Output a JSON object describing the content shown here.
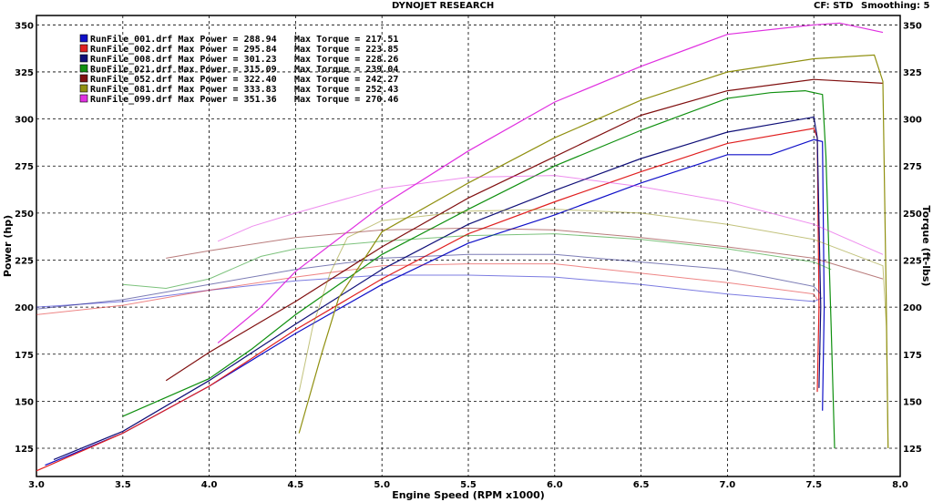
{
  "header": {
    "title": "DYNOJET RESEARCH",
    "cf_label": "CF: STD",
    "smoothing_label": "Smoothing: 5"
  },
  "chart_data": {
    "type": "line",
    "title": "DYNOJET RESEARCH",
    "xlabel": "Engine Speed (RPM x1000)",
    "ylabel_left": "Power (hp)",
    "ylabel_right": "Torque (ft-lbs)",
    "xlim": [
      3.0,
      8.0
    ],
    "ylim": [
      110,
      355
    ],
    "grid": true,
    "legend_placement": "top-left",
    "x_ticks": [
      "3.0",
      "3.5",
      "4.0",
      "4.5",
      "5.0",
      "5.5",
      "6.0",
      "6.5",
      "7.0",
      "7.5",
      "8.0"
    ],
    "y_ticks_left": [
      "125",
      "150",
      "175",
      "200",
      "225",
      "250",
      "275",
      "300",
      "325",
      "350"
    ],
    "y_ticks_right": [
      "125",
      "150",
      "175",
      "200",
      "225",
      "250",
      "275",
      "300",
      "325",
      "350"
    ],
    "series": [
      {
        "name": "RunFile_001.drf",
        "color": "#1010c8",
        "max_power": "288.94",
        "max_torque": "217.51",
        "power": [
          [
            3.05,
            116
          ],
          [
            3.5,
            133
          ],
          [
            4.0,
            158
          ],
          [
            4.5,
            186
          ],
          [
            5.0,
            212
          ],
          [
            5.5,
            234
          ],
          [
            6.0,
            249
          ],
          [
            6.5,
            266
          ],
          [
            7.0,
            281
          ],
          [
            7.25,
            281
          ],
          [
            7.5,
            289
          ],
          [
            7.55,
            288
          ],
          [
            7.56,
            200
          ],
          [
            7.55,
            145
          ]
        ],
        "torque": [
          [
            3.0,
            200
          ],
          [
            3.5,
            203
          ],
          [
            4.0,
            209
          ],
          [
            4.5,
            214
          ],
          [
            5.0,
            217
          ],
          [
            5.5,
            217
          ],
          [
            6.0,
            216
          ],
          [
            6.5,
            212
          ],
          [
            7.0,
            207
          ],
          [
            7.5,
            203
          ],
          [
            7.55,
            205
          ]
        ]
      },
      {
        "name": "RunFile_002.drf",
        "color": "#e02020",
        "max_power": "295.84",
        "max_torque": "223.85",
        "power": [
          [
            3.0,
            113
          ],
          [
            3.5,
            133
          ],
          [
            4.0,
            158
          ],
          [
            4.5,
            188
          ],
          [
            5.0,
            215
          ],
          [
            5.5,
            239
          ],
          [
            6.0,
            256
          ],
          [
            6.5,
            272
          ],
          [
            7.0,
            287
          ],
          [
            7.5,
            295
          ],
          [
            7.52,
            290
          ],
          [
            7.53,
            200
          ],
          [
            7.52,
            155
          ]
        ],
        "torque": [
          [
            3.0,
            196
          ],
          [
            3.5,
            201
          ],
          [
            4.0,
            209
          ],
          [
            4.5,
            216
          ],
          [
            5.0,
            222
          ],
          [
            5.5,
            223
          ],
          [
            6.0,
            223
          ],
          [
            6.5,
            218
          ],
          [
            7.0,
            213
          ],
          [
            7.5,
            207
          ],
          [
            7.52,
            204
          ]
        ]
      },
      {
        "name": "RunFile_008.drf",
        "color": "#101078",
        "max_power": "301.23",
        "max_torque": "228.26",
        "power": [
          [
            3.1,
            119
          ],
          [
            3.5,
            134
          ],
          [
            4.0,
            161
          ],
          [
            4.5,
            191
          ],
          [
            5.0,
            220
          ],
          [
            5.5,
            244
          ],
          [
            6.0,
            262
          ],
          [
            6.5,
            279
          ],
          [
            7.0,
            293
          ],
          [
            7.5,
            301
          ],
          [
            7.52,
            290
          ],
          [
            7.54,
            200
          ],
          [
            7.53,
            157
          ]
        ],
        "torque": [
          [
            3.0,
            199
          ],
          [
            3.5,
            204
          ],
          [
            4.0,
            212
          ],
          [
            4.5,
            220
          ],
          [
            5.0,
            226
          ],
          [
            5.5,
            228
          ],
          [
            6.0,
            228
          ],
          [
            6.5,
            224
          ],
          [
            7.0,
            220
          ],
          [
            7.5,
            211
          ],
          [
            7.54,
            207
          ]
        ]
      },
      {
        "name": "RunFile_021.drf",
        "color": "#109010",
        "max_power": "315.09",
        "max_torque": "239.04",
        "power": [
          [
            3.5,
            142
          ],
          [
            4.0,
            162
          ],
          [
            4.25,
            178
          ],
          [
            4.5,
            196
          ],
          [
            5.0,
            228
          ],
          [
            5.5,
            252
          ],
          [
            6.0,
            275
          ],
          [
            6.5,
            294
          ],
          [
            7.0,
            311
          ],
          [
            7.25,
            314
          ],
          [
            7.45,
            315
          ],
          [
            7.55,
            313
          ],
          [
            7.57,
            280
          ],
          [
            7.6,
            190
          ],
          [
            7.62,
            125
          ]
        ],
        "torque": [
          [
            3.5,
            212
          ],
          [
            3.75,
            210
          ],
          [
            4.0,
            215
          ],
          [
            4.3,
            227
          ],
          [
            4.5,
            231
          ],
          [
            5.0,
            235
          ],
          [
            5.5,
            238
          ],
          [
            6.0,
            239
          ],
          [
            6.5,
            236
          ],
          [
            7.0,
            231
          ],
          [
            7.5,
            224
          ],
          [
            7.6,
            220
          ]
        ]
      },
      {
        "name": "RunFile_052.drf",
        "color": "#801010",
        "max_power": "322.40",
        "max_torque": "242.27",
        "power": [
          [
            3.75,
            161
          ],
          [
            4.0,
            176
          ],
          [
            4.5,
            203
          ],
          [
            5.0,
            232
          ],
          [
            5.5,
            258
          ],
          [
            6.0,
            280
          ],
          [
            6.5,
            302
          ],
          [
            7.0,
            315
          ],
          [
            7.5,
            321
          ],
          [
            7.9,
            319
          ]
        ],
        "torque": [
          [
            3.75,
            226
          ],
          [
            4.0,
            230
          ],
          [
            4.5,
            237
          ],
          [
            5.0,
            241
          ],
          [
            5.5,
            242
          ],
          [
            6.0,
            241
          ],
          [
            6.5,
            237
          ],
          [
            7.0,
            232
          ],
          [
            7.5,
            226
          ],
          [
            7.9,
            215
          ]
        ]
      },
      {
        "name": "RunFile_081.drf",
        "color": "#909010",
        "max_power": "333.83",
        "max_torque": "252.43",
        "power": [
          [
            4.52,
            133
          ],
          [
            4.65,
            175
          ],
          [
            4.75,
            205
          ],
          [
            5.0,
            240
          ],
          [
            5.5,
            266
          ],
          [
            6.0,
            290
          ],
          [
            6.5,
            310
          ],
          [
            7.0,
            325
          ],
          [
            7.5,
            332
          ],
          [
            7.85,
            334
          ],
          [
            7.9,
            320
          ],
          [
            7.92,
            200
          ],
          [
            7.93,
            125
          ]
        ],
        "torque": [
          [
            4.52,
            155
          ],
          [
            4.6,
            190
          ],
          [
            4.7,
            218
          ],
          [
            4.8,
            237
          ],
          [
            5.0,
            246
          ],
          [
            5.5,
            251
          ],
          [
            6.0,
            252
          ],
          [
            6.5,
            250
          ],
          [
            7.0,
            244
          ],
          [
            7.5,
            236
          ],
          [
            7.9,
            222
          ],
          [
            7.92,
            190
          ],
          [
            7.93,
            125
          ]
        ]
      },
      {
        "name": "RunFile_099.drf",
        "color": "#e030e0",
        "max_power": "351.36",
        "max_torque": "270.46",
        "power": [
          [
            4.05,
            181
          ],
          [
            4.3,
            200
          ],
          [
            4.5,
            219
          ],
          [
            5.0,
            254
          ],
          [
            5.5,
            283
          ],
          [
            6.0,
            309
          ],
          [
            6.5,
            328
          ],
          [
            7.0,
            345
          ],
          [
            7.5,
            350
          ],
          [
            7.65,
            351
          ],
          [
            7.9,
            346
          ]
        ],
        "torque": [
          [
            4.05,
            235
          ],
          [
            4.25,
            243
          ],
          [
            4.5,
            250
          ],
          [
            5.0,
            263
          ],
          [
            5.5,
            269
          ],
          [
            6.0,
            270
          ],
          [
            6.5,
            264
          ],
          [
            7.0,
            256
          ],
          [
            7.5,
            244
          ],
          [
            7.9,
            228
          ]
        ]
      }
    ]
  }
}
